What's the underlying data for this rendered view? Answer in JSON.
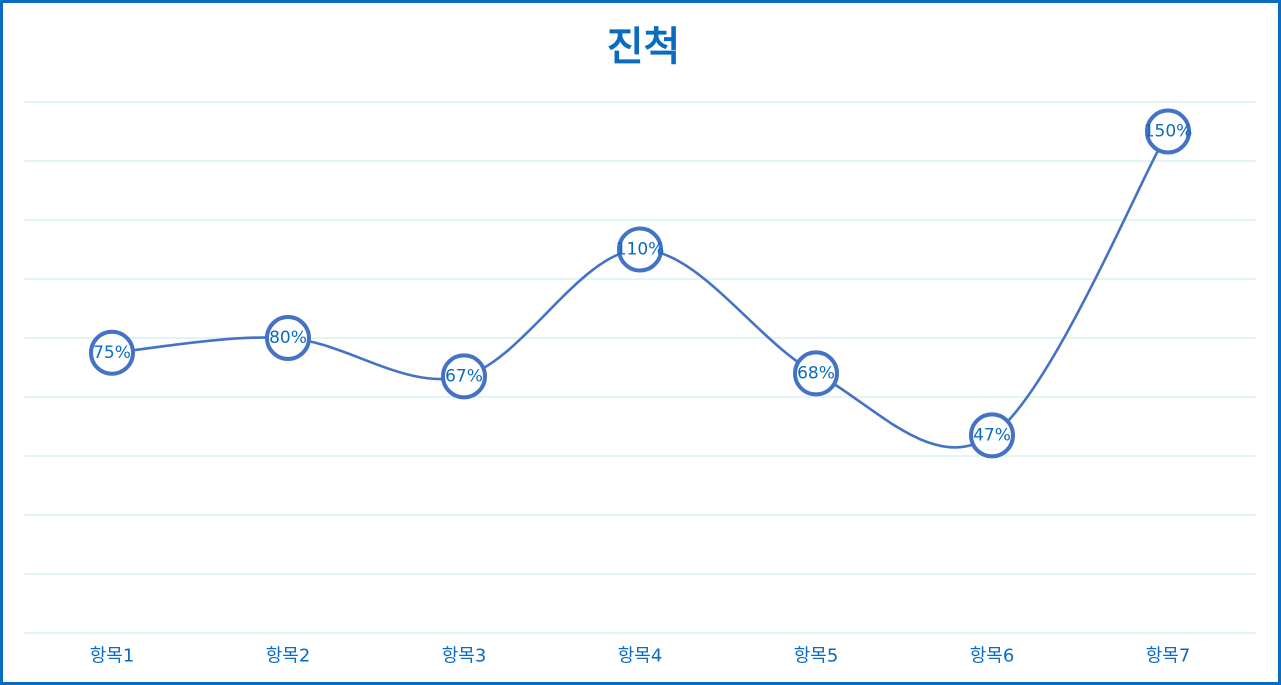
{
  "chart_data": {
    "type": "line",
    "title": "진척",
    "categories": [
      "항목1",
      "항목2",
      "항목3",
      "항목4",
      "항목5",
      "항목6",
      "항목7"
    ],
    "series": [
      {
        "values": [
          75,
          80,
          67,
          110,
          68,
          47,
          150
        ],
        "labels": [
          "75%",
          "80%",
          "67%",
          "110%",
          "68%",
          "47%",
          "150%"
        ],
        "color": "#4472c4"
      }
    ],
    "ylim": [
      -20,
      160
    ],
    "grid": true,
    "smooth": true,
    "marker": "circle"
  },
  "colors": {
    "accent": "#0a6cc1",
    "line": "#4472c4",
    "grid": "#d8f0f0"
  }
}
